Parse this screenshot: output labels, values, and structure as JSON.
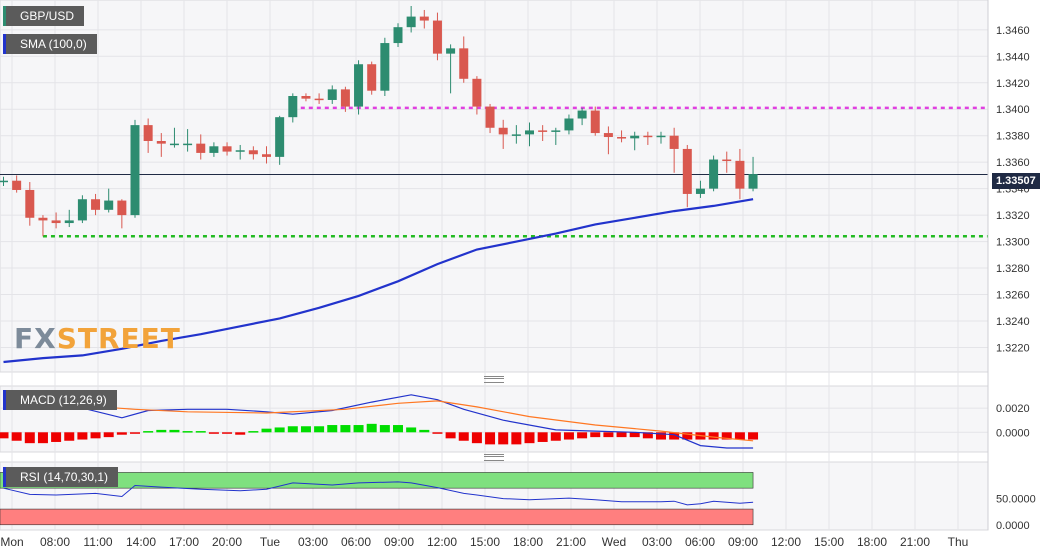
{
  "header": {
    "symbol": "GBP/USD",
    "sma_label": "SMA (100,0)",
    "current_price": "1.33507"
  },
  "logo": {
    "part1": "FX",
    "part2": "STREET"
  },
  "chart_data": [
    {
      "type": "candlestick",
      "title": "GBP/USD",
      "ylim": [
        1.3206,
        1.3478
      ],
      "y_ticks": [
        "1.3220",
        "1.3240",
        "1.3260",
        "1.3280",
        "1.3300",
        "1.3320",
        "1.3340",
        "1.3360",
        "1.3380",
        "1.3400",
        "1.3420",
        "1.3440",
        "1.3460"
      ],
      "x_ticks": [
        "Mon",
        "08:00",
        "11:00",
        "14:00",
        "17:00",
        "20:00",
        "Tue",
        "03:00",
        "06:00",
        "09:00",
        "12:00",
        "15:00",
        "18:00",
        "21:00",
        "Wed",
        "03:00",
        "06:00",
        "09:00",
        "12:00",
        "15:00",
        "18:00",
        "21:00",
        "Thu"
      ],
      "x_range": [
        0,
        80
      ],
      "candles": [
        [
          1.3345,
          1.3349,
          1.3342,
          1.3346
        ],
        [
          1.3346,
          1.335,
          1.3337,
          1.3339
        ],
        [
          1.3339,
          1.3345,
          1.3312,
          1.3318
        ],
        [
          1.3318,
          1.332,
          1.3304,
          1.3316
        ],
        [
          1.3316,
          1.3322,
          1.331,
          1.3314
        ],
        [
          1.3314,
          1.3324,
          1.3311,
          1.3316
        ],
        [
          1.3316,
          1.3335,
          1.3314,
          1.3332
        ],
        [
          1.3332,
          1.3336,
          1.332,
          1.3324
        ],
        [
          1.3324,
          1.334,
          1.3322,
          1.3331
        ],
        [
          1.3331,
          1.3332,
          1.331,
          1.332
        ],
        [
          1.332,
          1.3392,
          1.3318,
          1.3388
        ],
        [
          1.3388,
          1.3393,
          1.3367,
          1.3376
        ],
        [
          1.3376,
          1.3382,
          1.3364,
          1.3374
        ],
        [
          1.3374,
          1.3386,
          1.3371,
          1.3374
        ],
        [
          1.3374,
          1.3385,
          1.3368,
          1.3374
        ],
        [
          1.3374,
          1.3381,
          1.3362,
          1.3367
        ],
        [
          1.3367,
          1.3375,
          1.3364,
          1.3372
        ],
        [
          1.3372,
          1.3375,
          1.3365,
          1.3368
        ],
        [
          1.3368,
          1.3373,
          1.3362,
          1.3369
        ],
        [
          1.3369,
          1.3372,
          1.3362,
          1.3366
        ],
        [
          1.3366,
          1.3372,
          1.3359,
          1.3364
        ],
        [
          1.3364,
          1.3395,
          1.3358,
          1.3394
        ],
        [
          1.3394,
          1.3412,
          1.339,
          1.341
        ],
        [
          1.341,
          1.3412,
          1.3406,
          1.3408
        ],
        [
          1.3408,
          1.3412,
          1.3404,
          1.3407
        ],
        [
          1.3407,
          1.3418,
          1.3404,
          1.3415
        ],
        [
          1.3415,
          1.3417,
          1.3398,
          1.3402
        ],
        [
          1.3402,
          1.3437,
          1.3396,
          1.3434
        ],
        [
          1.3434,
          1.3436,
          1.3411,
          1.3414
        ],
        [
          1.3414,
          1.3454,
          1.341,
          1.345
        ],
        [
          1.345,
          1.3465,
          1.3447,
          1.3462
        ],
        [
          1.3462,
          1.3478,
          1.3458,
          1.347
        ],
        [
          1.347,
          1.3475,
          1.3461,
          1.3467
        ],
        [
          1.3467,
          1.3473,
          1.3437,
          1.3442
        ],
        [
          1.3442,
          1.3449,
          1.3412,
          1.3446
        ],
        [
          1.3446,
          1.3455,
          1.342,
          1.3423
        ],
        [
          1.3423,
          1.3425,
          1.3396,
          1.3402
        ],
        [
          1.3402,
          1.3404,
          1.3382,
          1.3386
        ],
        [
          1.3386,
          1.3392,
          1.337,
          1.3381
        ],
        [
          1.3381,
          1.3388,
          1.3374,
          1.3381
        ],
        [
          1.3381,
          1.339,
          1.3372,
          1.3384
        ],
        [
          1.3384,
          1.3388,
          1.3376,
          1.3383
        ],
        [
          1.3383,
          1.3386,
          1.3373,
          1.3384
        ],
        [
          1.3384,
          1.3396,
          1.3381,
          1.3393
        ],
        [
          1.3393,
          1.3401,
          1.3388,
          1.3399
        ],
        [
          1.3399,
          1.3402,
          1.338,
          1.3382
        ],
        [
          1.3382,
          1.3387,
          1.3366,
          1.3379
        ],
        [
          1.3379,
          1.3384,
          1.3375,
          1.3378
        ],
        [
          1.3378,
          1.3383,
          1.3369,
          1.338
        ],
        [
          1.338,
          1.3383,
          1.3373,
          1.3379
        ],
        [
          1.3379,
          1.3383,
          1.3374,
          1.338
        ],
        [
          1.338,
          1.3386,
          1.3352,
          1.337
        ],
        [
          1.337,
          1.3373,
          1.3326,
          1.3336
        ],
        [
          1.3336,
          1.3346,
          1.3333,
          1.334
        ],
        [
          1.334,
          1.3365,
          1.3338,
          1.3362
        ],
        [
          1.3362,
          1.3368,
          1.3352,
          1.3361
        ],
        [
          1.3361,
          1.337,
          1.3332,
          1.334
        ],
        [
          1.334,
          1.3364,
          1.3338,
          1.3351
        ]
      ],
      "sma": {
        "name": "SMA (100,0)",
        "points": [
          [
            0,
            1.3209
          ],
          [
            3,
            1.3212
          ],
          [
            6,
            1.3214
          ],
          [
            9,
            1.3219
          ],
          [
            12,
            1.3225
          ],
          [
            15,
            1.323
          ],
          [
            18,
            1.3236
          ],
          [
            21,
            1.3242
          ],
          [
            24,
            1.325
          ],
          [
            27,
            1.3259
          ],
          [
            30,
            1.327
          ],
          [
            33,
            1.3283
          ],
          [
            36,
            1.3294
          ],
          [
            39,
            1.33
          ],
          [
            42,
            1.3306
          ],
          [
            45,
            1.3313
          ],
          [
            48,
            1.3318
          ],
          [
            51,
            1.3323
          ],
          [
            54,
            1.3327
          ],
          [
            57,
            1.3332
          ]
        ]
      },
      "resistance": {
        "value": 1.3401,
        "color": "#e040e0",
        "from": 22
      },
      "support": {
        "value": 1.3304,
        "color": "#22bb22",
        "from": 3
      },
      "colors": {
        "up": "#2d8c70",
        "down": "#d9584f"
      }
    },
    {
      "type": "line",
      "title": "MACD (12,26,9)",
      "ylim": [
        -0.0013,
        0.0035
      ],
      "y_ticks": [
        "0.0020",
        "0.0000"
      ],
      "x_range": [
        0,
        80
      ],
      "series": [
        {
          "name": "MACD",
          "color": "#2233cc",
          "points": [
            [
              0,
              0.0028
            ],
            [
              3,
              0.0024
            ],
            [
              6,
              0.002
            ],
            [
              9,
              0.0012
            ],
            [
              11,
              0.0018
            ],
            [
              14,
              0.0019
            ],
            [
              17,
              0.0019
            ],
            [
              20,
              0.0017
            ],
            [
              22,
              0.0015
            ],
            [
              25,
              0.0018
            ],
            [
              28,
              0.0025
            ],
            [
              31,
              0.0031
            ],
            [
              33,
              0.0027
            ],
            [
              35,
              0.0019
            ],
            [
              38,
              0.001
            ],
            [
              42,
              0.0002
            ],
            [
              45,
              0.0001
            ],
            [
              48,
              0.0
            ],
            [
              51,
              -0.0002
            ],
            [
              53,
              -0.0011
            ],
            [
              55,
              -0.0013
            ],
            [
              57,
              -0.0013
            ]
          ]
        },
        {
          "name": "Signal",
          "color": "#ff7722",
          "points": [
            [
              0,
              0.0026
            ],
            [
              6,
              0.0022
            ],
            [
              10,
              0.0019
            ],
            [
              14,
              0.0017
            ],
            [
              20,
              0.0016
            ],
            [
              26,
              0.0019
            ],
            [
              30,
              0.0024
            ],
            [
              33,
              0.0026
            ],
            [
              36,
              0.0021
            ],
            [
              40,
              0.0013
            ],
            [
              45,
              0.0006
            ],
            [
              50,
              0.0001
            ],
            [
              54,
              -0.0004
            ],
            [
              57,
              -0.0007
            ]
          ]
        }
      ],
      "histogram": [
        -0.0005,
        -0.0007,
        -0.0009,
        -0.0009,
        -0.0008,
        -0.0007,
        -0.0006,
        -0.0005,
        -0.0004,
        -0.0002,
        -0.0001,
        0.0001,
        0.0002,
        0.0002,
        0.0001,
        0.0001,
        -0.0001,
        -0.0001,
        -0.0002,
        0.0001,
        0.0003,
        0.0004,
        0.0005,
        0.0005,
        0.0005,
        0.0006,
        0.0006,
        0.0006,
        0.0007,
        0.0006,
        0.0006,
        0.0004,
        0.0002,
        -0.0001,
        -0.0005,
        -0.0007,
        -0.0009,
        -0.001,
        -0.001,
        -0.001,
        -0.0009,
        -0.0008,
        -0.0007,
        -0.0006,
        -0.0005,
        -0.0004,
        -0.0004,
        -0.0004,
        -0.0004,
        -0.0005,
        -0.0006,
        -0.0006,
        -0.0006,
        -0.0006,
        -0.0006,
        -0.0006,
        -0.0006,
        -0.0006
      ],
      "colors": {
        "positive": "#00dd00",
        "negative": "#ee0000"
      }
    },
    {
      "type": "line",
      "title": "RSI (14,70,30,1)",
      "ylim": [
        -10,
        120
      ],
      "y_ticks": [
        "50.0000",
        "0.0000"
      ],
      "x_range": [
        0,
        80
      ],
      "overbought": 70,
      "oversold": 30,
      "series": [
        {
          "name": "RSI",
          "color": "#2233cc",
          "points": [
            [
              0,
              70
            ],
            [
              2,
              58
            ],
            [
              4,
              57
            ],
            [
              7,
              60
            ],
            [
              9,
              54
            ],
            [
              10,
              75
            ],
            [
              12,
              72
            ],
            [
              15,
              68
            ],
            [
              18,
              65
            ],
            [
              20,
              68
            ],
            [
              22,
              80
            ],
            [
              25,
              76
            ],
            [
              27,
              80
            ],
            [
              30,
              82
            ],
            [
              31,
              80
            ],
            [
              33,
              71
            ],
            [
              35,
              60
            ],
            [
              36,
              57
            ],
            [
              38,
              50
            ],
            [
              40,
              48
            ],
            [
              43,
              51
            ],
            [
              45,
              48
            ],
            [
              47,
              44
            ],
            [
              50,
              44
            ],
            [
              51,
              45
            ],
            [
              52,
              38
            ],
            [
              53,
              40
            ],
            [
              54,
              45
            ],
            [
              56,
              41
            ],
            [
              57,
              43
            ]
          ]
        }
      ],
      "zones": {
        "overbought_color": "#7fe07f",
        "oversold_color": "#ff7f7f"
      }
    }
  ],
  "macd_label": "MACD (12,26,9)",
  "rsi_label": "RSI (14,70,30,1)"
}
